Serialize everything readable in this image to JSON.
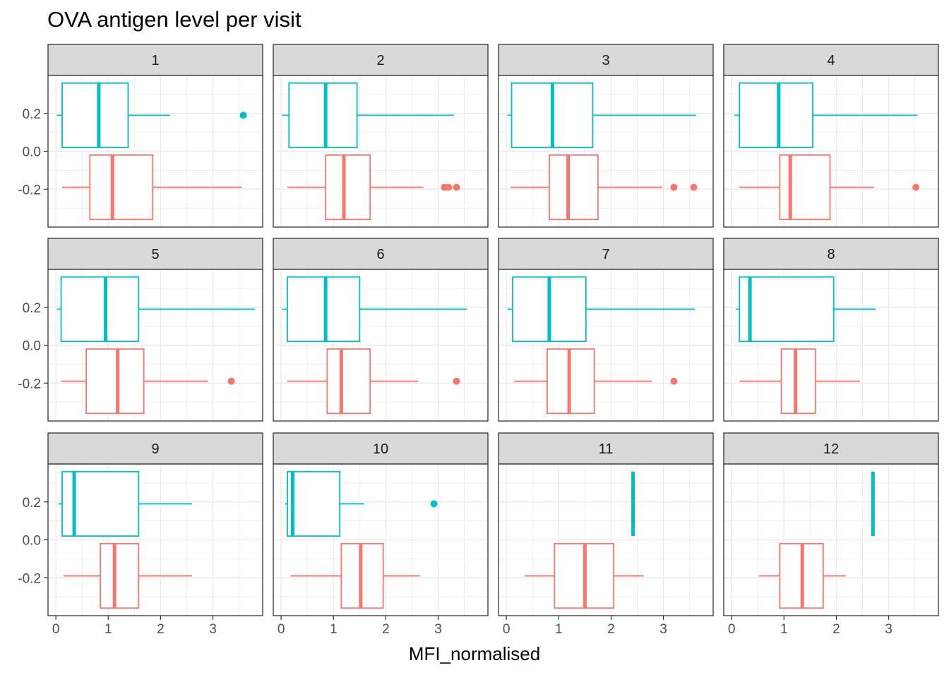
{
  "chart_data": {
    "type": "boxplot",
    "title": "OVA antigen level per visit",
    "xlabel": "MFI_normalised",
    "ylabel": "",
    "x_ticks": [
      0,
      1,
      2,
      3
    ],
    "x_range": [
      -0.15,
      3.95
    ],
    "y_ticks": [
      0.2,
      0.0,
      -0.2
    ],
    "y_tick_labels": [
      "0.2",
      "0.0",
      "-0.2"
    ],
    "y_range": [
      -0.4,
      0.4
    ],
    "layout": "facet grid 3 rows x 4 columns, shared axes",
    "grid": true,
    "colors": {
      "upper": "#00BFC4",
      "lower": "#F8766D",
      "strip_bg": "#d9d9d9",
      "grid": "#ebebeb"
    },
    "panels": [
      {
        "label": "1",
        "upper": {
          "wmin": 0.02,
          "q1": 0.12,
          "median": 0.82,
          "q3": 1.38,
          "wmax": 2.18,
          "outliers": [
            3.58
          ]
        },
        "lower": {
          "wmin": 0.12,
          "q1": 0.65,
          "median": 1.08,
          "q3": 1.85,
          "wmax": 3.55,
          "outliers": []
        }
      },
      {
        "label": "2",
        "upper": {
          "wmin": 0.02,
          "q1": 0.15,
          "median": 0.85,
          "q3": 1.45,
          "wmax": 3.3,
          "outliers": []
        },
        "lower": {
          "wmin": 0.12,
          "q1": 0.85,
          "median": 1.2,
          "q3": 1.7,
          "wmax": 2.72,
          "outliers": [
            3.12,
            3.2,
            3.35
          ]
        }
      },
      {
        "label": "3",
        "upper": {
          "wmin": 0.02,
          "q1": 0.1,
          "median": 0.88,
          "q3": 1.65,
          "wmax": 3.62,
          "outliers": []
        },
        "lower": {
          "wmin": 0.08,
          "q1": 0.82,
          "median": 1.18,
          "q3": 1.75,
          "wmax": 2.98,
          "outliers": [
            3.2,
            3.58
          ]
        }
      },
      {
        "label": "4",
        "upper": {
          "wmin": 0.05,
          "q1": 0.15,
          "median": 0.9,
          "q3": 1.55,
          "wmax": 3.55,
          "outliers": []
        },
        "lower": {
          "wmin": 0.15,
          "q1": 0.92,
          "median": 1.12,
          "q3": 1.88,
          "wmax": 2.72,
          "outliers": [
            3.52
          ]
        }
      },
      {
        "label": "5",
        "upper": {
          "wmin": 0.02,
          "q1": 0.1,
          "median": 0.95,
          "q3": 1.58,
          "wmax": 3.8,
          "outliers": []
        },
        "lower": {
          "wmin": 0.1,
          "q1": 0.58,
          "median": 1.18,
          "q3": 1.68,
          "wmax": 2.9,
          "outliers": [
            3.35
          ]
        }
      },
      {
        "label": "6",
        "upper": {
          "wmin": 0.02,
          "q1": 0.12,
          "median": 0.85,
          "q3": 1.5,
          "wmax": 3.55,
          "outliers": []
        },
        "lower": {
          "wmin": 0.12,
          "q1": 0.88,
          "median": 1.15,
          "q3": 1.7,
          "wmax": 2.62,
          "outliers": [
            3.35
          ]
        }
      },
      {
        "label": "7",
        "upper": {
          "wmin": 0.02,
          "q1": 0.12,
          "median": 0.82,
          "q3": 1.52,
          "wmax": 3.6,
          "outliers": []
        },
        "lower": {
          "wmin": 0.15,
          "q1": 0.78,
          "median": 1.2,
          "q3": 1.68,
          "wmax": 2.78,
          "outliers": [
            3.2
          ]
        }
      },
      {
        "label": "8",
        "upper": {
          "wmin": 0.08,
          "q1": 0.15,
          "median": 0.35,
          "q3": 1.95,
          "wmax": 2.75,
          "outliers": []
        },
        "lower": {
          "wmin": 0.15,
          "q1": 0.95,
          "median": 1.22,
          "q3": 1.6,
          "wmax": 2.45,
          "outliers": []
        }
      },
      {
        "label": "9",
        "upper": {
          "wmin": 0.05,
          "q1": 0.12,
          "median": 0.35,
          "q3": 1.58,
          "wmax": 2.6,
          "outliers": []
        },
        "lower": {
          "wmin": 0.15,
          "q1": 0.85,
          "median": 1.12,
          "q3": 1.58,
          "wmax": 2.6,
          "outliers": []
        }
      },
      {
        "label": "10",
        "upper": {
          "wmin": 0.08,
          "q1": 0.12,
          "median": 0.22,
          "q3": 1.12,
          "wmax": 1.58,
          "outliers": [
            2.92
          ]
        },
        "lower": {
          "wmin": 0.18,
          "q1": 1.15,
          "median": 1.52,
          "q3": 1.95,
          "wmax": 2.65,
          "outliers": []
        }
      },
      {
        "label": "11",
        "upper": {
          "wmin": 2.42,
          "q1": 2.42,
          "median": 2.42,
          "q3": 2.42,
          "wmax": 2.42,
          "outliers": []
        },
        "lower": {
          "wmin": 0.35,
          "q1": 0.92,
          "median": 1.5,
          "q3": 2.05,
          "wmax": 2.62,
          "outliers": []
        }
      },
      {
        "label": "12",
        "upper": {
          "wmin": 2.7,
          "q1": 2.7,
          "median": 2.7,
          "q3": 2.7,
          "wmax": 2.7,
          "outliers": []
        },
        "lower": {
          "wmin": 0.52,
          "q1": 0.92,
          "median": 1.35,
          "q3": 1.75,
          "wmax": 2.18,
          "outliers": []
        }
      }
    ]
  }
}
